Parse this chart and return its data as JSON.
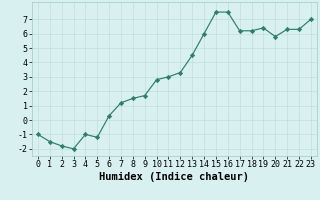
{
  "x": [
    0,
    1,
    2,
    3,
    4,
    5,
    6,
    7,
    8,
    9,
    10,
    11,
    12,
    13,
    14,
    15,
    16,
    17,
    18,
    19,
    20,
    21,
    22,
    23
  ],
  "y": [
    -1.0,
    -1.5,
    -1.8,
    -2.0,
    -1.0,
    -1.2,
    0.3,
    1.2,
    1.5,
    1.7,
    2.8,
    3.0,
    3.3,
    4.5,
    6.0,
    7.5,
    7.5,
    6.2,
    6.2,
    6.4,
    5.8,
    6.3,
    6.3,
    7.0
  ],
  "xlabel": "Humidex (Indice chaleur)",
  "xlim": [
    -0.5,
    23.5
  ],
  "ylim": [
    -2.5,
    8.2
  ],
  "line_color": "#2e7d6e",
  "marker": "D",
  "marker_size": 2.2,
  "bg_color": "#d9f0f0",
  "grid_color": "#c0dede",
  "yticks": [
    -2,
    -1,
    0,
    1,
    2,
    3,
    4,
    5,
    6,
    7
  ],
  "xticks": [
    0,
    1,
    2,
    3,
    4,
    5,
    6,
    7,
    8,
    9,
    10,
    11,
    12,
    13,
    14,
    15,
    16,
    17,
    18,
    19,
    20,
    21,
    22,
    23
  ],
  "xlabel_fontsize": 7.5,
  "tick_fontsize": 6.0,
  "linewidth": 0.85
}
